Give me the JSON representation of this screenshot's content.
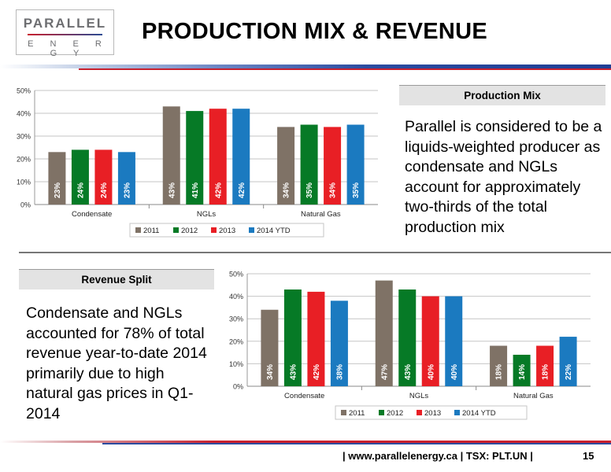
{
  "header": {
    "logo_top": "PARALLEL",
    "logo_bottom": "E N E R G Y",
    "title": "PRODUCTION MIX & REVENUE"
  },
  "production": {
    "header": "Production Mix",
    "text": "Parallel is considered to be a liquids-weighted producer as condensate and NGLs account for approximately two-thirds of the total production mix"
  },
  "revenue": {
    "header": "Revenue Split",
    "text": "Condensate and NGLs accounted for 78% of total revenue year-to-date 2014 primarily due to high natural gas prices in Q1-2014"
  },
  "footer": {
    "text": "| www.parallelenergy.ca  |  TSX: PLT.UN  |",
    "page": "15"
  },
  "colors": {
    "2011": "#7f7266",
    "2012": "#067a26",
    "2013": "#e81f25",
    "2014 YTD": "#1b7ac0"
  },
  "chart_data": [
    {
      "type": "bar",
      "title": "",
      "categories": [
        "Condensate",
        "NGLs",
        "Natural Gas"
      ],
      "series": [
        {
          "name": "2011",
          "values": [
            23,
            43,
            34
          ],
          "labels": [
            "23%",
            "43%",
            "34%"
          ]
        },
        {
          "name": "2012",
          "values": [
            24,
            41,
            35
          ],
          "labels": [
            "24%",
            "41%",
            "35%"
          ]
        },
        {
          "name": "2013",
          "values": [
            24,
            42,
            34
          ],
          "labels": [
            "24%",
            "42%",
            "34%"
          ]
        },
        {
          "name": "2014 YTD",
          "values": [
            23,
            42,
            35
          ],
          "labels": [
            "23%",
            "42%",
            "35%"
          ]
        }
      ],
      "ylim": [
        0,
        50
      ],
      "yticks": [
        "0%",
        "10%",
        "20%",
        "30%",
        "40%",
        "50%"
      ],
      "grid": true,
      "legend": "bottom"
    },
    {
      "type": "bar",
      "title": "",
      "categories": [
        "Condensate",
        "NGLs",
        "Natural Gas"
      ],
      "series": [
        {
          "name": "2011",
          "values": [
            34,
            47,
            18
          ],
          "labels": [
            "34%",
            "47%",
            "18%"
          ]
        },
        {
          "name": "2012",
          "values": [
            43,
            43,
            14
          ],
          "labels": [
            "43%",
            "43%",
            "14%"
          ]
        },
        {
          "name": "2013",
          "values": [
            42,
            40,
            18
          ],
          "labels": [
            "42%",
            "40%",
            "18%"
          ]
        },
        {
          "name": "2014 YTD",
          "values": [
            38,
            40,
            22
          ],
          "labels": [
            "38%",
            "40%",
            "22%"
          ]
        }
      ],
      "ylim": [
        0,
        50
      ],
      "yticks": [
        "0%",
        "10%",
        "20%",
        "30%",
        "40%",
        "50%"
      ],
      "grid": true,
      "legend": "bottom"
    }
  ]
}
